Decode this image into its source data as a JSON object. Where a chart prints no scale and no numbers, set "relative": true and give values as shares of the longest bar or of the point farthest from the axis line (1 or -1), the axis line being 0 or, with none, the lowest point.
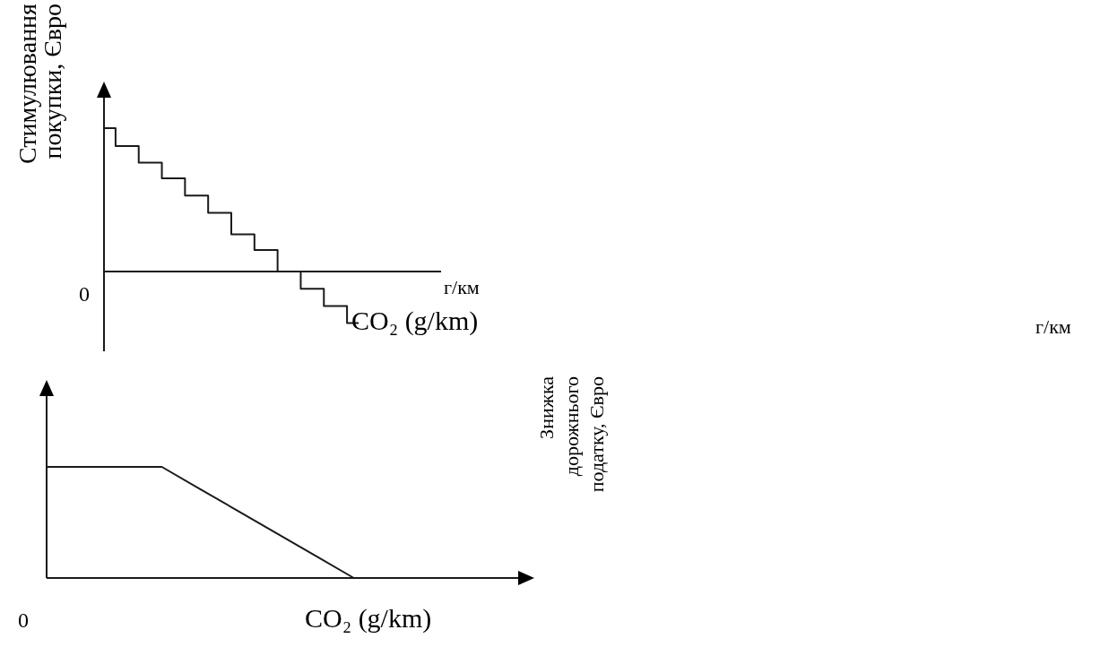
{
  "chart_data": [
    {
      "type": "step",
      "relative": true,
      "ylabel": "Стимулювання покупки, Євро",
      "xlabel": "CO₂ (g/km)",
      "annotations": [
        "г/км",
        "0"
      ],
      "categories": [
        null,
        null,
        null,
        null,
        null,
        null,
        null,
        null,
        null,
        null,
        null,
        null
      ],
      "series": [
        {
          "color": "#1a1a1a",
          "values": [
            1,
            0.875,
            0.76,
            0.65,
            0.53,
            0.41,
            0.26,
            0.15,
            0,
            -0.12,
            -0.24,
            -0.36
          ]
        }
      ]
    },
    {
      "type": "line",
      "relative": true,
      "ylabel": "Знижка дорожнього податку, Євро",
      "xlabel": "CO₂ (g/km)",
      "annotations": [
        "г/км",
        "0"
      ],
      "categories": [
        null,
        null,
        null,
        null,
        null,
        null,
        null,
        null,
        null,
        null,
        null,
        null,
        null
      ],
      "series": [
        {
          "color": "#1a1a1a",
          "values": [
            1,
            1,
            1,
            1,
            0.8,
            0.6,
            0.4,
            0.2,
            0,
            null,
            null,
            null,
            null
          ]
        }
      ]
    }
  ]
}
